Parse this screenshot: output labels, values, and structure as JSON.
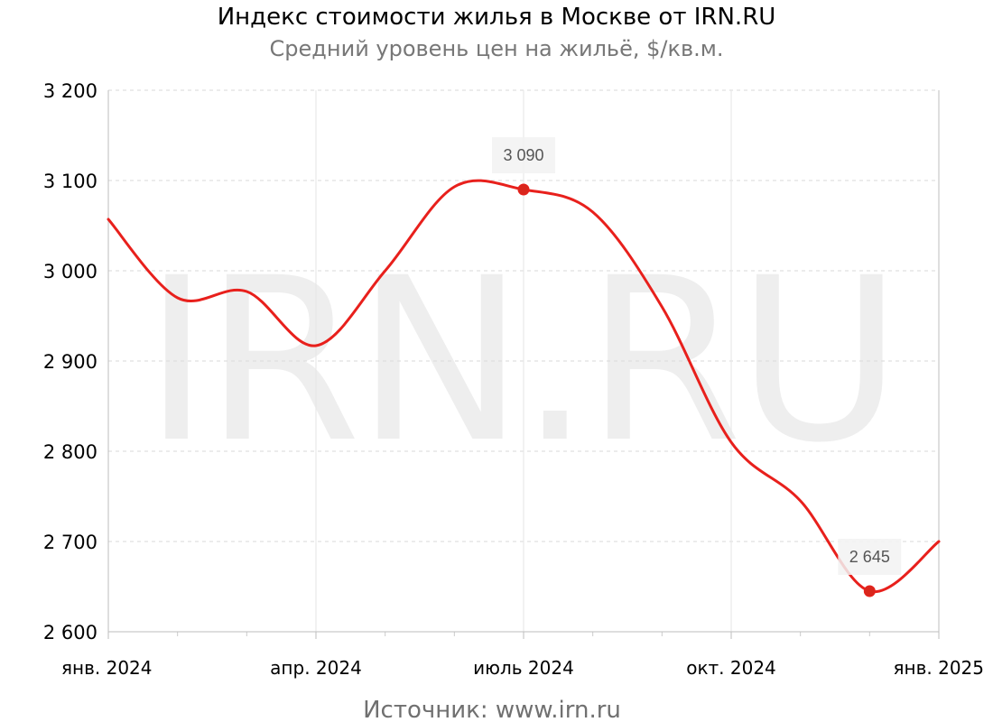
{
  "chart_data": {
    "type": "line",
    "title": "Индекс стоимости жилья в Москве от IRN.RU",
    "subtitle": "Средний уровень цен на жильё, $/кв.м.",
    "source": "Источник:  www.irn.ru",
    "watermark": "IRN.RU",
    "x": [
      "2024-01",
      "2024-02",
      "2024-03",
      "2024-04",
      "2024-05",
      "2024-06",
      "2024-07",
      "2024-08",
      "2024-09",
      "2024-10",
      "2024-11",
      "2024-12",
      "2025-01"
    ],
    "x_tick_labels": [
      "янв. 2024",
      "апр. 2024",
      "июль 2024",
      "окт. 2024",
      "янв. 2025"
    ],
    "series": [
      {
        "values": [
          3057,
          2970,
          2977,
          2917,
          3000,
          3093,
          3090,
          3065,
          2960,
          2810,
          2745,
          2645,
          2700
        ],
        "color": "#e8201c"
      }
    ],
    "highlighted_points": [
      {
        "x": "2024-07",
        "value": 3090,
        "label": "3 090"
      },
      {
        "x": "2024-12",
        "value": 2645,
        "label": "2 645"
      }
    ],
    "y_tick_labels": [
      "2 600",
      "2 700",
      "2 800",
      "2 900",
      "3 000",
      "3 100",
      "3 200"
    ],
    "ylim": [
      2600,
      3200
    ],
    "grid": true,
    "legend": "none"
  }
}
